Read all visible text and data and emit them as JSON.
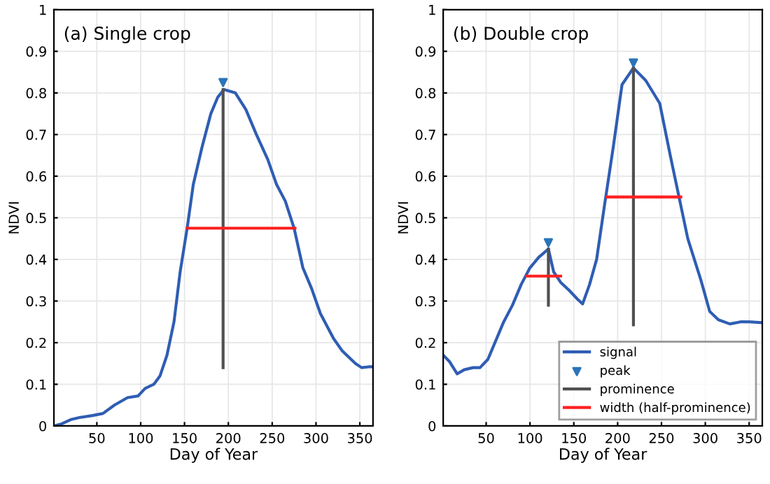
{
  "chart_data": [
    {
      "type": "line",
      "title": "(a) Single crop",
      "xlabel": "Day of Year",
      "ylabel": "NDVI",
      "xlim": [
        1,
        365
      ],
      "ylim": [
        0,
        1
      ],
      "xticks": [
        50,
        100,
        150,
        200,
        250,
        300,
        350
      ],
      "yticks": [
        0,
        0.1,
        0.2,
        0.3,
        0.4,
        0.5,
        0.6,
        0.7,
        0.8,
        0.9,
        1
      ],
      "grid": true,
      "legend": false,
      "series": [
        {
          "color": "#2f5db3",
          "x": [
            1,
            10,
            20,
            30,
            45,
            57,
            70,
            85,
            97,
            105,
            115,
            122,
            130,
            138,
            145,
            153,
            160,
            170,
            180,
            188,
            195,
            208,
            220,
            232,
            245,
            255,
            265,
            275,
            285,
            295,
            305,
            320,
            330,
            345,
            352,
            360,
            365
          ],
          "values": [
            0,
            0.005,
            0.015,
            0.02,
            0.025,
            0.03,
            0.05,
            0.068,
            0.072,
            0.09,
            0.1,
            0.12,
            0.17,
            0.25,
            0.37,
            0.475,
            0.58,
            0.67,
            0.75,
            0.79,
            0.808,
            0.8,
            0.76,
            0.7,
            0.64,
            0.58,
            0.54,
            0.475,
            0.38,
            0.33,
            0.27,
            0.21,
            0.18,
            0.15,
            0.14,
            0.142,
            0.142
          ]
        },
        {
          "type": "scatter",
          "marker": "triangle",
          "color": "#2a74b8",
          "x": [
            194
          ],
          "values": [
            0.825
          ]
        },
        {
          "type": "line",
          "color": "#505050",
          "x": [
            194,
            194
          ],
          "values": [
            0.14,
            0.808
          ]
        },
        {
          "type": "line",
          "color": "#ff2020",
          "x": [
            153,
            276
          ],
          "values": [
            0.475,
            0.475
          ]
        }
      ]
    },
    {
      "type": "line",
      "title": "(b) Double crop",
      "xlabel": "Day of Year",
      "ylabel": "NDVI",
      "xlim": [
        1,
        365
      ],
      "ylim": [
        0,
        1
      ],
      "xticks": [
        50,
        100,
        150,
        200,
        250,
        300,
        350
      ],
      "yticks": [
        0,
        0.1,
        0.2,
        0.3,
        0.4,
        0.5,
        0.6,
        0.7,
        0.8,
        0.9,
        1
      ],
      "grid": true,
      "legend": "bottom right",
      "series": [
        {
          "name": "signal",
          "color": "#2f5db3",
          "x": [
            1,
            8,
            17,
            25,
            35,
            43,
            52,
            60,
            70,
            80,
            90,
            100,
            110,
            121,
            127,
            135,
            145,
            154,
            160,
            168,
            176,
            185,
            195,
            205,
            218,
            232,
            248,
            260,
            270,
            280,
            295,
            305,
            315,
            328,
            340,
            350,
            365
          ],
          "values": [
            0.17,
            0.155,
            0.125,
            0.135,
            0.14,
            0.14,
            0.16,
            0.2,
            0.25,
            0.29,
            0.34,
            0.38,
            0.405,
            0.425,
            0.37,
            0.345,
            0.325,
            0.305,
            0.293,
            0.34,
            0.4,
            0.53,
            0.67,
            0.82,
            0.86,
            0.83,
            0.775,
            0.65,
            0.55,
            0.45,
            0.35,
            0.275,
            0.255,
            0.245,
            0.25,
            0.25,
            0.248
          ]
        },
        {
          "type": "scatter",
          "name": "peak",
          "marker": "triangle",
          "color": "#2a74b8",
          "x": [
            121,
            218
          ],
          "values": [
            0.44,
            0.872
          ]
        },
        {
          "type": "line",
          "name": "prominence",
          "color": "#505050",
          "x": [
            121,
            121
          ],
          "values": [
            0.29,
            0.425
          ]
        },
        {
          "type": "line",
          "color": "#505050",
          "x": [
            218,
            218
          ],
          "values": [
            0.243,
            0.86
          ]
        },
        {
          "type": "line",
          "name": "width (half-prominence)",
          "color": "#ff2020",
          "x": [
            96,
            135
          ],
          "values": [
            0.36,
            0.36
          ]
        },
        {
          "type": "line",
          "color": "#ff2020",
          "x": [
            188,
            272
          ],
          "values": [
            0.55,
            0.55
          ]
        }
      ]
    }
  ]
}
